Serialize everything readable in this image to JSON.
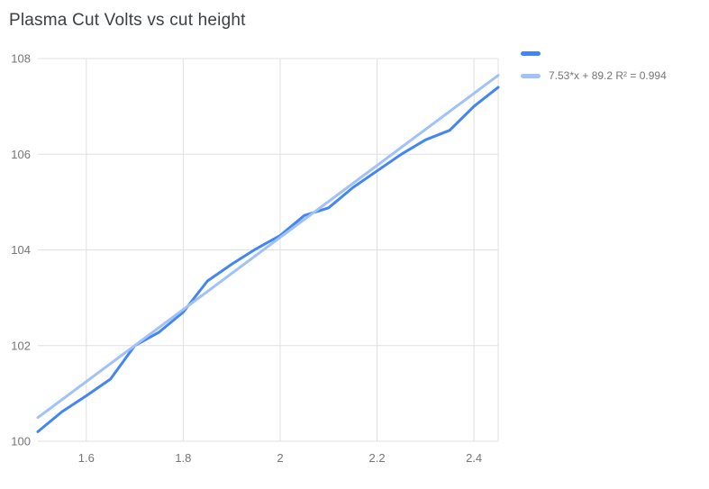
{
  "title": "Plasma Cut Volts vs cut height",
  "colors": {
    "series": "#4285f4",
    "trendline": "#a1c2f9",
    "grid": "#e0e0e0",
    "tick_label": "#757575",
    "title_text": "#3c4043"
  },
  "legend": {
    "series_label": "",
    "trendline_label": "7.53*x + 89.2 R² = 0.994"
  },
  "chart_data": {
    "type": "line",
    "title": "Plasma Cut Volts vs cut height",
    "xlabel": "",
    "ylabel": "",
    "xlim": [
      1.5,
      2.45
    ],
    "ylim": [
      100,
      108
    ],
    "x_ticks": [
      1.6,
      1.8,
      2,
      2.2,
      2.4
    ],
    "x_tick_labels": [
      "1.6",
      "1.8",
      "2",
      "2.2",
      "2.4"
    ],
    "y_ticks": [
      100,
      102,
      104,
      106,
      108
    ],
    "y_tick_labels": [
      "100",
      "102",
      "104",
      "106",
      "108"
    ],
    "grid": true,
    "legend_position": "right",
    "x": [
      1.5,
      1.55,
      1.6,
      1.65,
      1.7,
      1.75,
      1.8,
      1.85,
      1.9,
      1.95,
      2.0,
      2.05,
      2.1,
      2.15,
      2.2,
      2.25,
      2.3,
      2.35,
      2.4,
      2.45
    ],
    "series": [
      {
        "name": "",
        "values": [
          100.2,
          100.62,
          100.95,
          101.3,
          102.0,
          102.28,
          102.7,
          103.35,
          103.7,
          104.02,
          104.3,
          104.72,
          104.88,
          105.3,
          105.65,
          106.0,
          106.3,
          106.5,
          107.0,
          107.4
        ]
      }
    ],
    "trendline": {
      "label": "7.53*x + 89.2 R² = 0.994",
      "slope": 7.53,
      "intercept": 89.2,
      "r2": 0.994
    }
  }
}
